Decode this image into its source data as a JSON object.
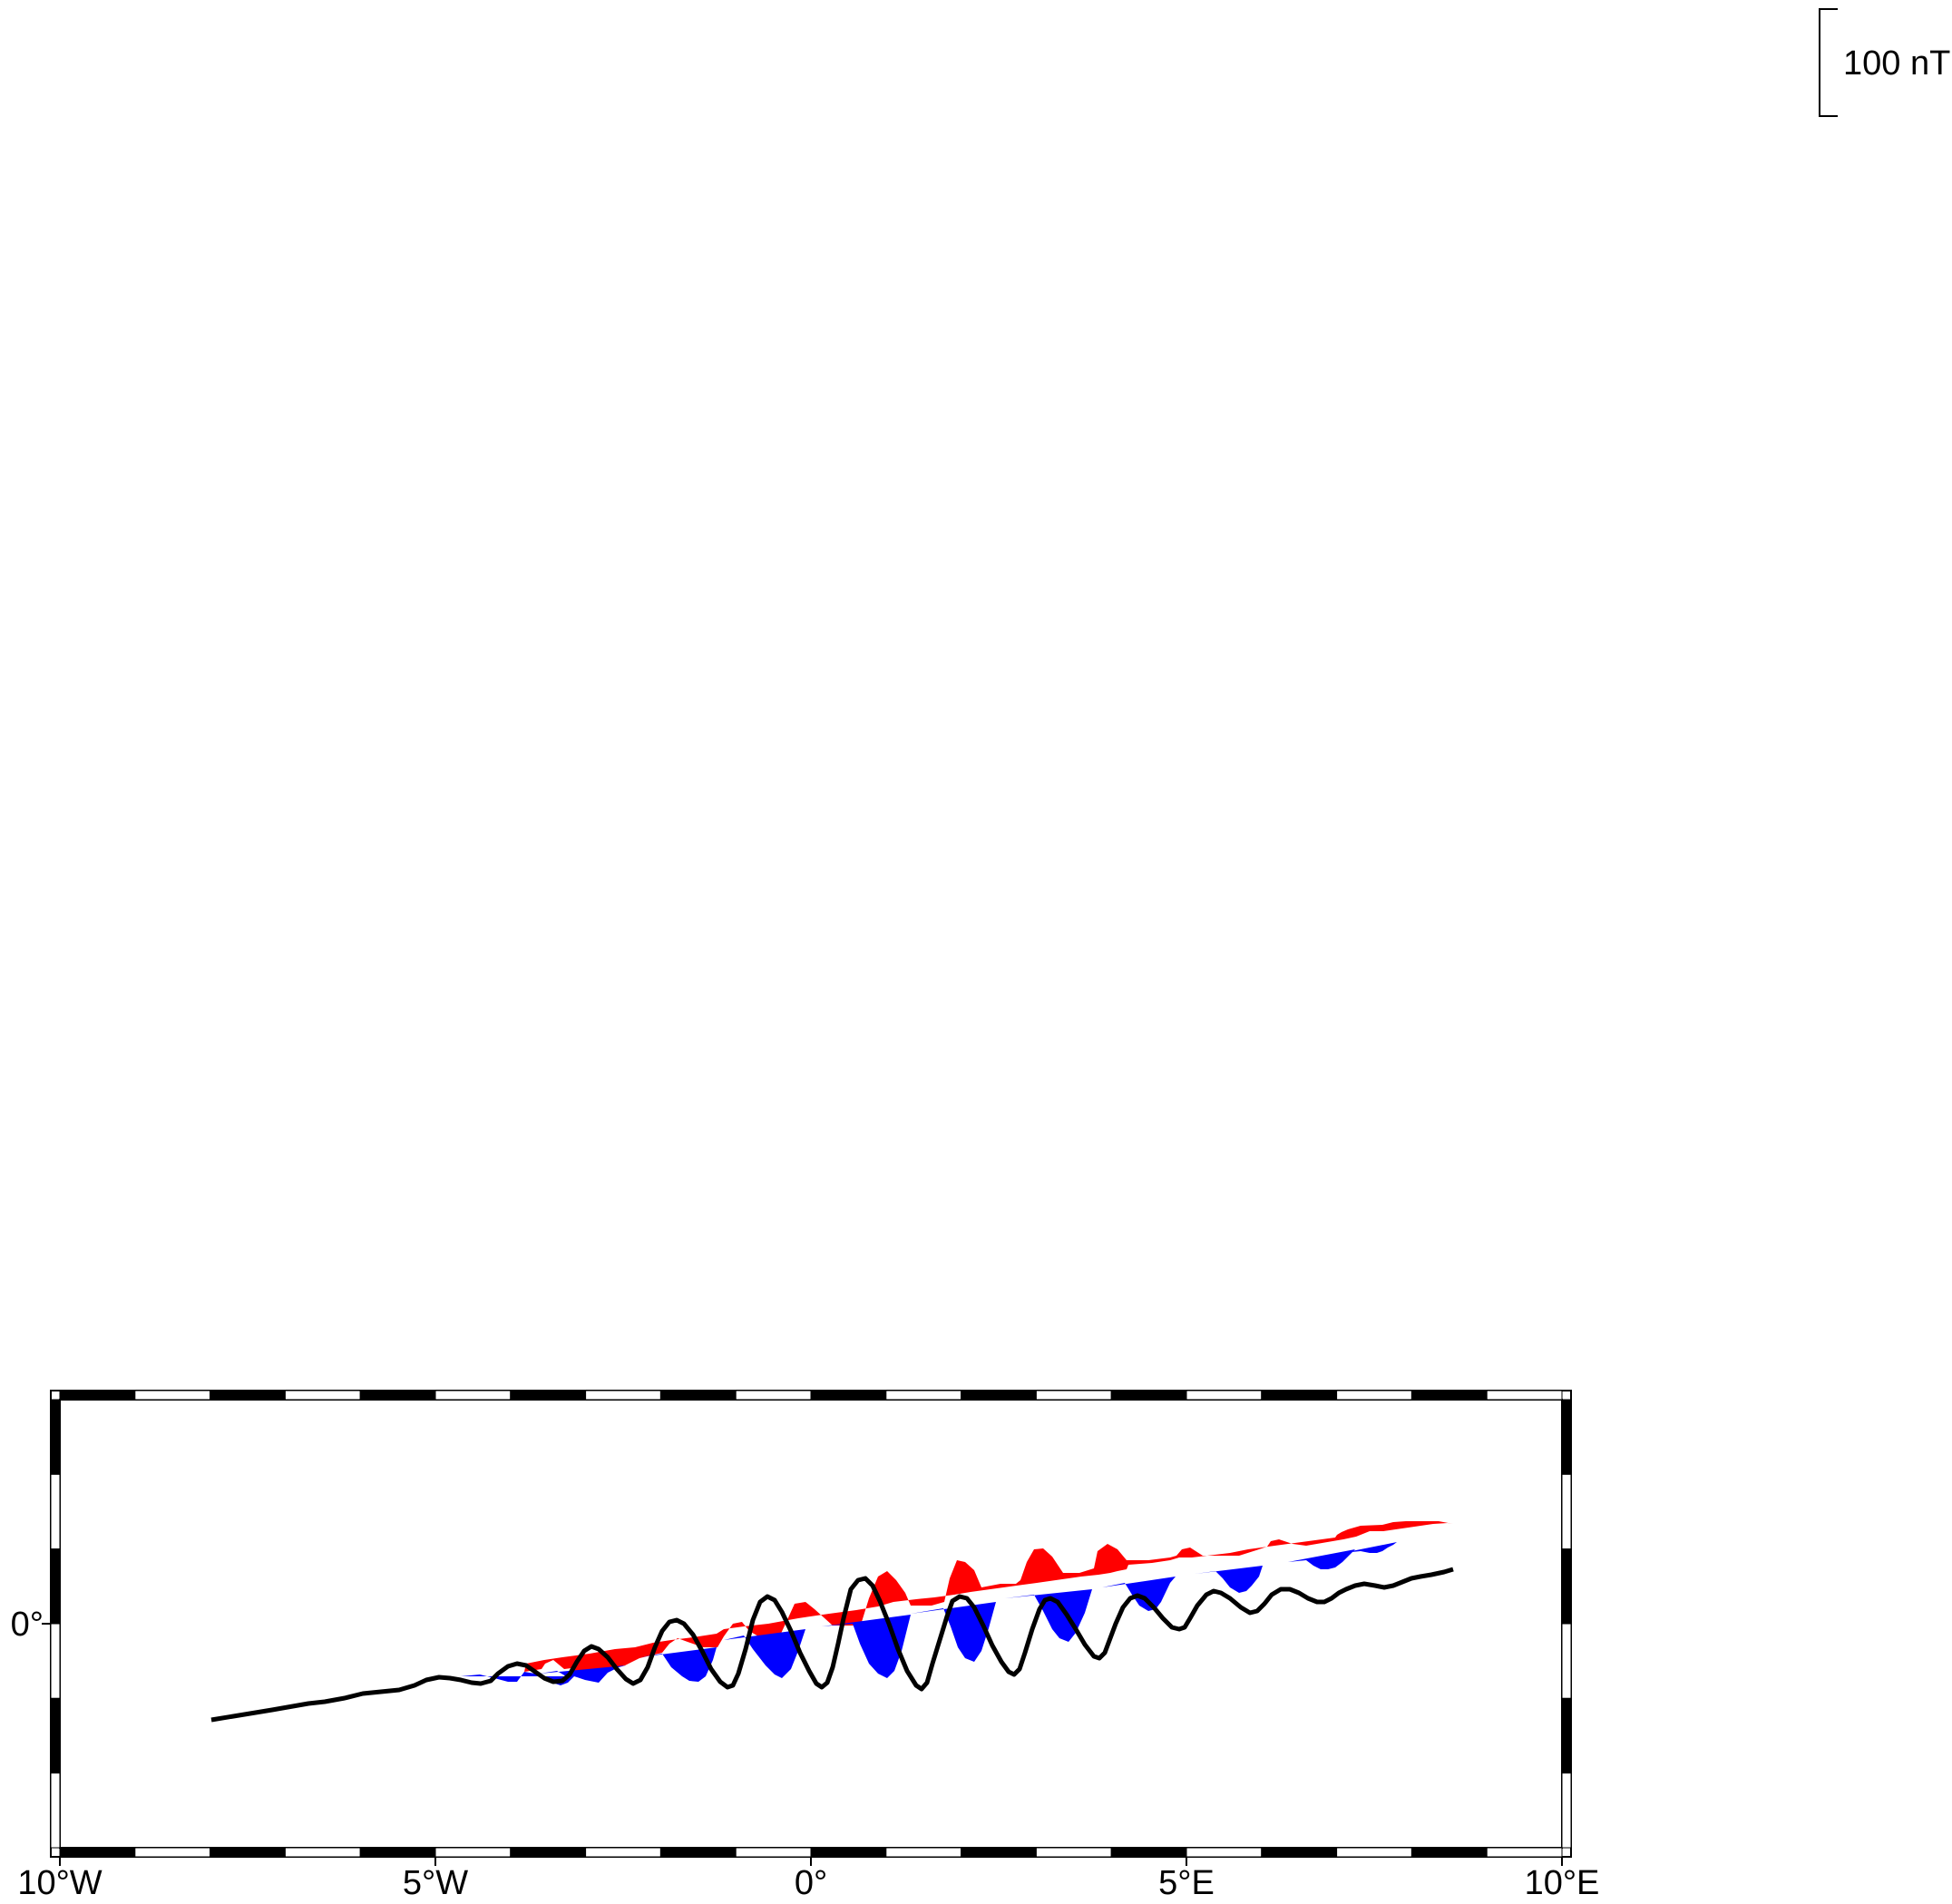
{
  "map": {
    "longitude_ticks": [
      "10°W",
      "5°W",
      "0°",
      "5°E",
      "10°E"
    ],
    "latitude_ticks": [
      "0°"
    ],
    "region": {
      "lon_min": -10,
      "lon_max": 10
    },
    "frame_style": "fancy (alternating black/white)"
  },
  "scale_bar": {
    "label": "100 nT"
  },
  "wiggle": {
    "positive_fill": "#ff0000",
    "negative_fill": "#0000ff",
    "track_color": "#000000"
  }
}
